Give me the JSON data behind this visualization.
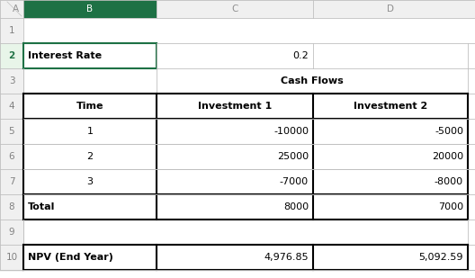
{
  "col_headers": [
    "A",
    "B",
    "C",
    "D"
  ],
  "row_numbers": [
    "1",
    "2",
    "3",
    "4",
    "5",
    "6",
    "7",
    "8",
    "9",
    "10"
  ],
  "cells": {
    "B2": "Interest Rate",
    "C2": "0.2",
    "B4": "Time",
    "C4": "Investment 1",
    "D4": "Investment 2",
    "B5": "1",
    "C5": "-10000",
    "D5": "-5000",
    "B6": "2",
    "C6": "25000",
    "D6": "20000",
    "B7": "3",
    "C7": "-7000",
    "D7": "-8000",
    "B8": "Total",
    "C8": "8000",
    "D8": "7000",
    "B10": "NPV (End Year)",
    "C10": "4,976.85",
    "D10": "5,092.59"
  },
  "thin_color": "#c0c0c0",
  "thick_color": "#000000",
  "green_color": "#1e7145",
  "header_bg": "#e8e8e8",
  "col_b_header_bg": "#1e7145",
  "white_bg": "#ffffff",
  "row2_num_color": "#217346",
  "row_num_color": "#808080",
  "thin_lw": 0.6,
  "thick_lw": 1.5,
  "fontsize": 8.0
}
